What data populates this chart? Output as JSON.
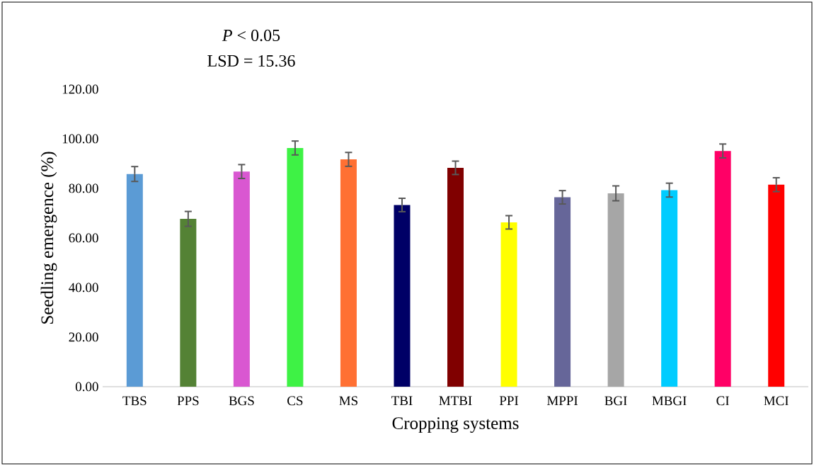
{
  "chart_data": {
    "type": "bar",
    "categories": [
      "TBS",
      "PPS",
      "BGS",
      "CS",
      "MS",
      "TBI",
      "MTBI",
      "PPI",
      "MPPI",
      "BGI",
      "MBGI",
      "CI",
      "MCI"
    ],
    "values": [
      85.8,
      67.7,
      86.8,
      96.3,
      91.7,
      73.3,
      88.3,
      66.3,
      76.4,
      78.0,
      79.3,
      95.1,
      81.5
    ],
    "errors": [
      3.0,
      3.0,
      2.8,
      2.8,
      2.8,
      2.7,
      2.7,
      2.7,
      2.7,
      3.0,
      2.8,
      2.8,
      2.8
    ],
    "colors": [
      "#5b9bd5",
      "#548235",
      "#d957d1",
      "#3ef245",
      "#ff7033",
      "#000066",
      "#800000",
      "#ffff00",
      "#666699",
      "#a6a6a6",
      "#00ccff",
      "#ff0066",
      "#ff0000"
    ],
    "xlabel": "Cropping systems",
    "ylabel": "Seedling emergence  (%)",
    "ylim": [
      0,
      120
    ],
    "yticks": [
      {
        "value": 0,
        "label": "0.00"
      },
      {
        "value": 20,
        "label": "20.00"
      },
      {
        "value": 40,
        "label": "40.00"
      },
      {
        "value": 60,
        "label": "60.00"
      },
      {
        "value": 80,
        "label": "80.00"
      },
      {
        "value": 100,
        "label": "100.00"
      },
      {
        "value": 120,
        "label": "120.00"
      }
    ],
    "annotations": [
      "*P* < 0.05",
      "LSD = 15.36"
    ]
  }
}
